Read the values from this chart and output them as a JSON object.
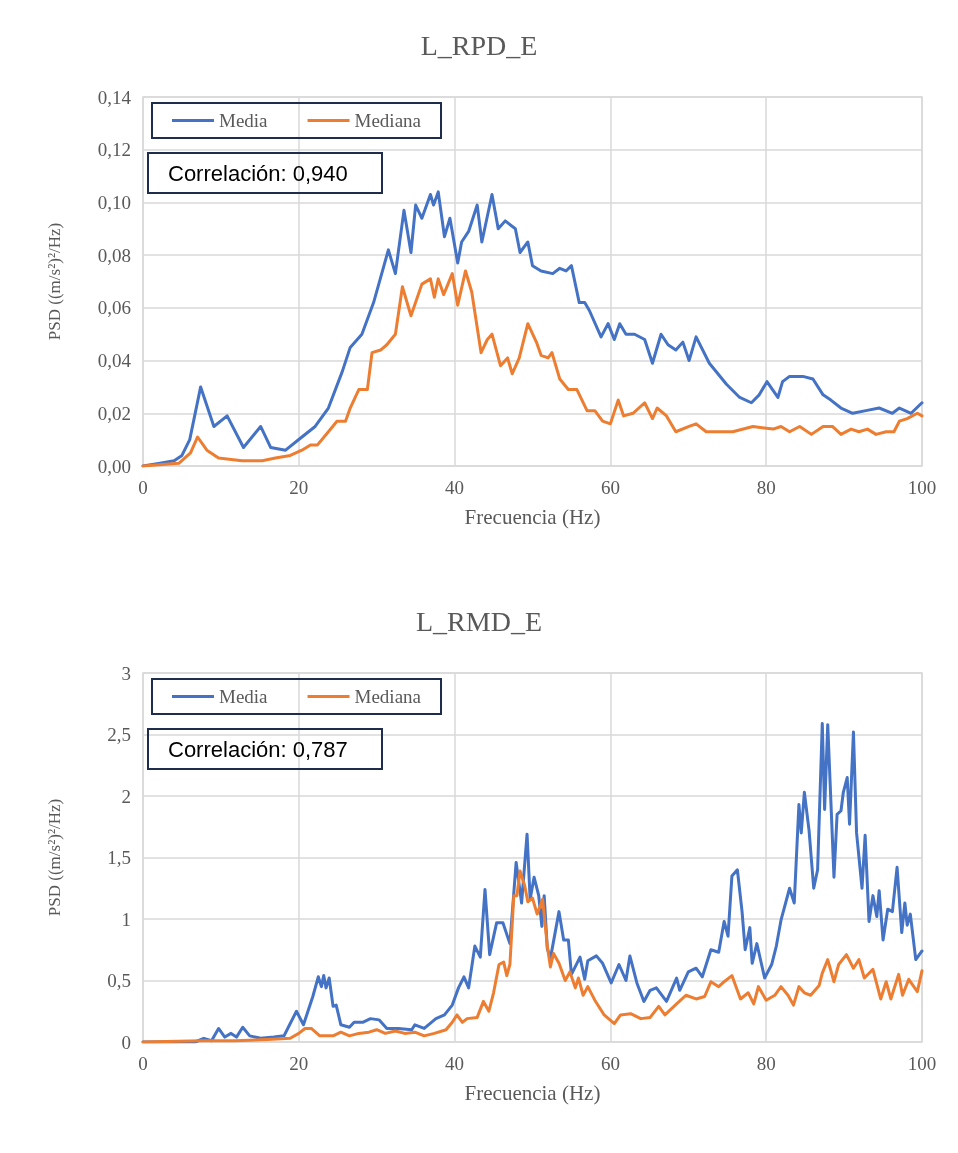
{
  "chart_data": [
    {
      "type": "line",
      "title": "L_RPD_E",
      "xlabel": "Frecuencia (Hz)",
      "ylabel": "PSD ((m/s²)²/Hz)",
      "annotations": [
        "Correlación: 0,940"
      ],
      "xlim": [
        0,
        100
      ],
      "xticks": [
        0,
        20,
        40,
        60,
        80,
        100
      ],
      "ylim": [
        0,
        0.14
      ],
      "yticks": [
        {
          "value": 0,
          "label": "0,00"
        },
        {
          "value": 0.02,
          "label": "0,02"
        },
        {
          "value": 0.04,
          "label": "0,04"
        },
        {
          "value": 0.06,
          "label": "0,06"
        },
        {
          "value": 0.08,
          "label": "0,08"
        },
        {
          "value": 0.1,
          "label": "0,10"
        },
        {
          "value": 0.12,
          "label": "0,12"
        },
        {
          "value": 0.14,
          "label": "0,14"
        }
      ],
      "grid": true,
      "legend": "top left",
      "marker": "none",
      "line_style": "solid",
      "series": [
        {
          "name": "Media",
          "color": "#4472c4",
          "x": [
            0,
            2,
            4,
            5,
            6,
            7.4,
            9.1,
            10.8,
            12.9,
            15.1,
            16.4,
            18.3,
            20.4,
            22.1,
            23.8,
            25.6,
            26.6,
            28.1,
            29.6,
            31.5,
            32.4,
            33.5,
            34.4,
            35.0,
            35.8,
            36.9,
            37.3,
            37.9,
            38.7,
            39.4,
            40.4,
            40.9,
            41.8,
            42.9,
            43.5,
            44.8,
            45.6,
            46.5,
            47.8,
            48.4,
            49.4,
            50.0,
            51.1,
            52.6,
            53.5,
            54.3,
            55.0,
            56.0,
            56.7,
            57.3,
            58.8,
            59.7,
            60.5,
            61.2,
            62.0,
            63.1,
            64.4,
            65.4,
            66.5,
            67.4,
            68.4,
            69.3,
            70.1,
            71.0,
            72.7,
            74.9,
            76.6,
            78.1,
            79.1,
            80.1,
            81.5,
            82.1,
            83.0,
            84.7,
            86.0,
            87.3,
            88.3,
            89.6,
            91.1,
            92.8,
            94.5,
            96.2,
            97.1,
            98.6,
            100
          ],
          "values": [
            0,
            0.001,
            0.002,
            0.004,
            0.01,
            0.03,
            0.015,
            0.019,
            0.007,
            0.015,
            0.007,
            0.006,
            0.011,
            0.015,
            0.022,
            0.036,
            0.045,
            0.05,
            0.062,
            0.082,
            0.073,
            0.097,
            0.081,
            0.099,
            0.094,
            0.103,
            0.099,
            0.104,
            0.087,
            0.094,
            0.077,
            0.085,
            0.089,
            0.099,
            0.085,
            0.103,
            0.09,
            0.093,
            0.09,
            0.081,
            0.085,
            0.076,
            0.074,
            0.073,
            0.075,
            0.074,
            0.076,
            0.062,
            0.062,
            0.059,
            0.049,
            0.054,
            0.048,
            0.054,
            0.05,
            0.05,
            0.048,
            0.039,
            0.05,
            0.046,
            0.044,
            0.047,
            0.04,
            0.049,
            0.039,
            0.031,
            0.026,
            0.024,
            0.027,
            0.032,
            0.026,
            0.032,
            0.034,
            0.034,
            0.033,
            0.027,
            0.025,
            0.022,
            0.02,
            0.021,
            0.022,
            0.02,
            0.022,
            0.02,
            0.024
          ]
        },
        {
          "name": "Mediana",
          "color": "#ed7d31",
          "x": [
            0,
            4.6,
            6.1,
            7.0,
            8.2,
            9.7,
            12.7,
            15.3,
            17.0,
            18.9,
            20.4,
            21.5,
            22.4,
            23.8,
            24.9,
            26.0,
            26.6,
            27.7,
            28.8,
            29.4,
            30.5,
            31.3,
            32.4,
            33.3,
            34.4,
            35.8,
            36.9,
            37.4,
            37.9,
            38.6,
            39.7,
            40.4,
            41.4,
            42.2,
            43.4,
            44.2,
            44.8,
            45.9,
            46.8,
            47.4,
            48.3,
            49.4,
            50.5,
            51.1,
            52.0,
            52.5,
            53.5,
            54.6,
            55.7,
            57.0,
            58.0,
            59.0,
            60.0,
            61.0,
            61.7,
            62.9,
            64.4,
            65.4,
            66.0,
            67.2,
            68.4,
            70.1,
            71.0,
            72.3,
            74.0,
            75.7,
            78.3,
            80.9,
            81.9,
            83.0,
            84.3,
            85.8,
            87.3,
            88.5,
            89.6,
            90.9,
            91.9,
            93.0,
            94.1,
            95.4,
            96.4,
            97.1,
            98.1,
            99.4,
            100
          ],
          "values": [
            0,
            0.001,
            0.005,
            0.011,
            0.006,
            0.003,
            0.002,
            0.002,
            0.003,
            0.004,
            0.006,
            0.008,
            0.008,
            0.013,
            0.017,
            0.017,
            0.022,
            0.029,
            0.029,
            0.043,
            0.044,
            0.046,
            0.05,
            0.068,
            0.057,
            0.069,
            0.071,
            0.064,
            0.071,
            0.065,
            0.073,
            0.061,
            0.074,
            0.066,
            0.043,
            0.048,
            0.05,
            0.038,
            0.041,
            0.035,
            0.041,
            0.054,
            0.047,
            0.042,
            0.041,
            0.043,
            0.033,
            0.029,
            0.029,
            0.021,
            0.021,
            0.017,
            0.016,
            0.025,
            0.019,
            0.02,
            0.024,
            0.018,
            0.022,
            0.019,
            0.013,
            0.015,
            0.016,
            0.013,
            0.013,
            0.013,
            0.015,
            0.014,
            0.015,
            0.013,
            0.015,
            0.012,
            0.015,
            0.015,
            0.012,
            0.014,
            0.013,
            0.014,
            0.012,
            0.013,
            0.013,
            0.017,
            0.018,
            0.02,
            0.019
          ]
        }
      ]
    },
    {
      "type": "line",
      "title": "L_RMD_E",
      "xlabel": "Frecuencia (Hz)",
      "ylabel": "PSD ((m/s²)²/Hz)",
      "annotations": [
        "Correlación: 0,787"
      ],
      "xlim": [
        0,
        100
      ],
      "xticks": [
        0,
        20,
        40,
        60,
        80,
        100
      ],
      "ylim": [
        0,
        3
      ],
      "yticks": [
        0,
        {
          "value": 0.5,
          "label": "0,5"
        },
        1,
        {
          "value": 1.5,
          "label": "1,5"
        },
        2,
        {
          "value": 2.5,
          "label": "2,5"
        },
        3
      ],
      "grid": true,
      "legend": "top left",
      "marker": "none",
      "line_style": "solid",
      "series": [
        {
          "name": "Media",
          "color": "#4472c4",
          "x": [
            0,
            6.7,
            7.8,
            8.8,
            9.7,
            10.5,
            11.3,
            12.0,
            12.8,
            13.7,
            15.1,
            16.8,
            18.1,
            18.9,
            19.7,
            20.6,
            21.8,
            22.5,
            22.9,
            23.2,
            23.5,
            23.9,
            24.4,
            24.8,
            25.4,
            26.5,
            27.1,
            28.2,
            29.2,
            30.3,
            31.3,
            32.8,
            34.5,
            34.9,
            36.1,
            37.6,
            38.7,
            39.7,
            40.5,
            41.2,
            41.8,
            42.6,
            43.3,
            43.9,
            44.5,
            45.4,
            46.2,
            47.1,
            47.9,
            48.6,
            49.3,
            49.7,
            50.2,
            50.8,
            51.2,
            51.5,
            51.9,
            52.3,
            53.4,
            54.0,
            54.6,
            55.0,
            56.1,
            56.7,
            57.1,
            58.2,
            59.0,
            60.1,
            61.1,
            62.0,
            62.5,
            63.4,
            64.3,
            65.1,
            65.9,
            67.2,
            68.5,
            68.9,
            70.0,
            71.0,
            71.8,
            72.9,
            73.9,
            74.6,
            75.1,
            75.6,
            76.3,
            76.9,
            77.3,
            77.9,
            78.2,
            78.8,
            79.8,
            80.7,
            81.3,
            81.9,
            83.0,
            83.6,
            84.2,
            84.5,
            84.9,
            85.5,
            86.1,
            86.6,
            87.2,
            87.5,
            87.9,
            88.7,
            89.1,
            89.6,
            89.9,
            90.4,
            90.7,
            91.2,
            91.6,
            92.3,
            92.7,
            93.2,
            93.7,
            94.2,
            94.5,
            95.0,
            95.6,
            96.2,
            96.8,
            97.4,
            97.8,
            98.1,
            98.5,
            99.2,
            100
          ],
          "values": [
            0,
            0,
            0.03,
            0.01,
            0.11,
            0.04,
            0.07,
            0.04,
            0.12,
            0.05,
            0.03,
            0.04,
            0.05,
            0.15,
            0.25,
            0.14,
            0.37,
            0.53,
            0.45,
            0.54,
            0.44,
            0.52,
            0.29,
            0.3,
            0.14,
            0.12,
            0.16,
            0.16,
            0.19,
            0.18,
            0.11,
            0.11,
            0.1,
            0.14,
            0.11,
            0.19,
            0.22,
            0.3,
            0.44,
            0.53,
            0.44,
            0.78,
            0.69,
            1.24,
            0.71,
            0.97,
            0.97,
            0.8,
            1.46,
            1.13,
            1.69,
            1.16,
            1.34,
            1.19,
            0.94,
            1.19,
            0.76,
            0.68,
            1.06,
            0.83,
            0.83,
            0.55,
            0.69,
            0.51,
            0.66,
            0.7,
            0.64,
            0.48,
            0.63,
            0.5,
            0.7,
            0.48,
            0.33,
            0.42,
            0.44,
            0.33,
            0.52,
            0.42,
            0.57,
            0.6,
            0.53,
            0.75,
            0.73,
            0.98,
            0.86,
            1.35,
            1.4,
            1.06,
            0.75,
            0.93,
            0.64,
            0.8,
            0.52,
            0.63,
            0.78,
            0.99,
            1.25,
            1.13,
            1.93,
            1.7,
            2.03,
            1.72,
            1.25,
            1.4,
            2.59,
            1.89,
            2.58,
            1.34,
            1.85,
            1.88,
            2.03,
            2.15,
            1.77,
            2.52,
            1.7,
            1.25,
            1.68,
            0.98,
            1.19,
            1.02,
            1.23,
            0.83,
            1.08,
            1.06,
            1.42,
            0.89,
            1.13,
            0.95,
            1.04,
            0.67,
            0.74
          ]
        },
        {
          "name": "Mediana",
          "color": "#ed7d31",
          "x": [
            0,
            7.6,
            11.8,
            16.0,
            18.9,
            20.0,
            20.8,
            21.6,
            22.7,
            24.4,
            25.4,
            26.5,
            27.7,
            29.0,
            30.0,
            31.1,
            32.4,
            33.6,
            34.9,
            36.1,
            37.4,
            38.9,
            39.7,
            40.3,
            41.0,
            41.6,
            42.9,
            43.7,
            44.4,
            45.0,
            45.7,
            46.3,
            46.7,
            47.1,
            47.6,
            48.0,
            48.4,
            49.0,
            49.4,
            50.0,
            50.6,
            51.3,
            51.9,
            52.3,
            52.7,
            53.4,
            54.2,
            54.8,
            55.5,
            55.9,
            56.5,
            57.1,
            58.0,
            59.2,
            60.5,
            61.3,
            62.6,
            63.9,
            65.1,
            66.2,
            67.0,
            68.5,
            69.7,
            71.0,
            72.1,
            72.9,
            73.9,
            74.6,
            75.6,
            76.7,
            77.7,
            78.4,
            79.0,
            80.0,
            81.1,
            81.9,
            82.8,
            83.5,
            84.2,
            84.9,
            85.7,
            86.8,
            87.2,
            87.9,
            88.7,
            89.3,
            90.3,
            91.2,
            91.9,
            92.6,
            93.7,
            94.7,
            95.4,
            96.0,
            97.0,
            97.5,
            98.3,
            99.4,
            100
          ],
          "values": [
            0,
            0.01,
            0.01,
            0.02,
            0.03,
            0.07,
            0.11,
            0.11,
            0.05,
            0.05,
            0.08,
            0.05,
            0.07,
            0.08,
            0.1,
            0.07,
            0.09,
            0.07,
            0.08,
            0.05,
            0.07,
            0.1,
            0.16,
            0.22,
            0.16,
            0.19,
            0.2,
            0.33,
            0.25,
            0.4,
            0.63,
            0.65,
            0.54,
            0.63,
            1.19,
            1.19,
            1.39,
            1.27,
            1.14,
            1.17,
            1.04,
            1.16,
            0.78,
            0.61,
            0.72,
            0.64,
            0.5,
            0.57,
            0.44,
            0.52,
            0.38,
            0.45,
            0.34,
            0.22,
            0.15,
            0.22,
            0.23,
            0.19,
            0.2,
            0.29,
            0.22,
            0.31,
            0.38,
            0.35,
            0.37,
            0.49,
            0.45,
            0.49,
            0.54,
            0.35,
            0.4,
            0.31,
            0.45,
            0.34,
            0.38,
            0.45,
            0.38,
            0.3,
            0.45,
            0.4,
            0.38,
            0.46,
            0.56,
            0.67,
            0.49,
            0.63,
            0.71,
            0.6,
            0.67,
            0.52,
            0.59,
            0.35,
            0.49,
            0.35,
            0.55,
            0.38,
            0.51,
            0.41,
            0.58
          ]
        }
      ]
    }
  ]
}
